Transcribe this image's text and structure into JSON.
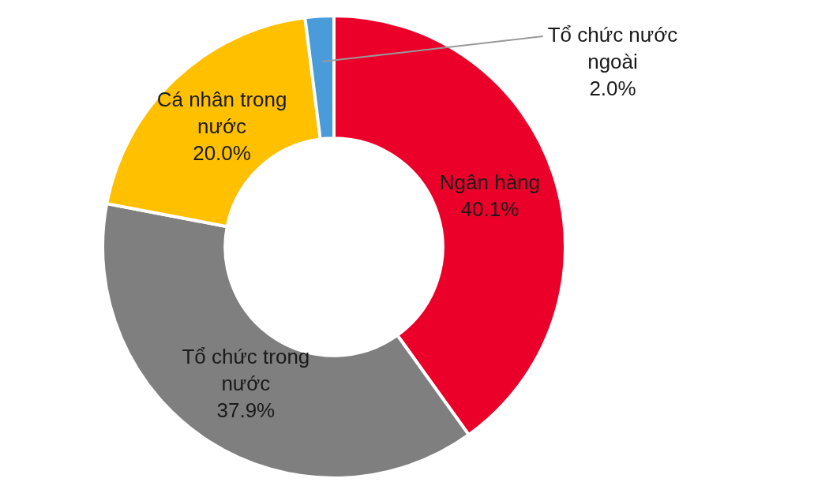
{
  "chart_data": {
    "type": "donut",
    "categories": [
      "Ngân hàng",
      "Tổ chức trong nước",
      "Cá nhân trong nước",
      "Tổ chức nước ngoài"
    ],
    "values": [
      40.1,
      37.9,
      20.0,
      2.0
    ],
    "colors": [
      "#ea0029",
      "#7f7f7f",
      "#ffc000",
      "#4a9bd9"
    ],
    "value_labels": [
      "40.1%",
      "37.9%",
      "20.0%",
      "2.0%"
    ],
    "legend": false
  }
}
